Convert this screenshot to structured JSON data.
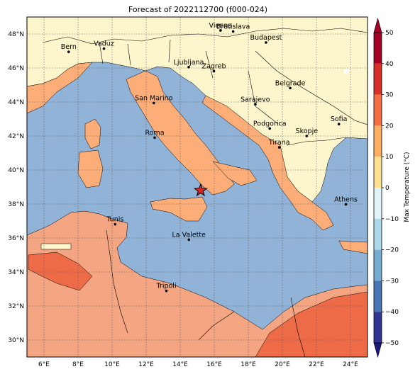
{
  "title": "Forecast of 2022112700 (f000-024)",
  "map": {
    "lon_range": [
      5,
      25
    ],
    "lat_range": [
      29,
      49
    ],
    "x_ticks": [
      {
        "lon": 6,
        "label": "6°E"
      },
      {
        "lon": 8,
        "label": "8°E"
      },
      {
        "lon": 10,
        "label": "10°E"
      },
      {
        "lon": 12,
        "label": "12°E"
      },
      {
        "lon": 14,
        "label": "14°E"
      },
      {
        "lon": 16,
        "label": "16°E"
      },
      {
        "lon": 18,
        "label": "18°E"
      },
      {
        "lon": 20,
        "label": "20°E"
      },
      {
        "lon": 22,
        "label": "22°E"
      },
      {
        "lon": 24,
        "label": "24°E"
      }
    ],
    "y_ticks": [
      {
        "lat": 48,
        "label": "48°N"
      },
      {
        "lat": 46,
        "label": "46°N"
      },
      {
        "lat": 44,
        "label": "44°N"
      },
      {
        "lat": 42,
        "label": "42°N"
      },
      {
        "lat": 40,
        "label": "40°N"
      },
      {
        "lat": 38,
        "label": "38°N"
      },
      {
        "lat": 36,
        "label": "36°N"
      },
      {
        "lat": 34,
        "label": "34°N"
      },
      {
        "lat": 32,
        "label": "32°N"
      },
      {
        "lat": 30,
        "label": "30°N"
      }
    ],
    "gridlines": true,
    "cities": [
      {
        "name": "Bern",
        "lon": 7.45,
        "lat": 46.95
      },
      {
        "name": "Vaduz",
        "lon": 9.52,
        "lat": 47.14
      },
      {
        "name": "Vienna",
        "lon": 16.37,
        "lat": 48.21
      },
      {
        "name": "Bratislava",
        "lon": 17.11,
        "lat": 48.15
      },
      {
        "name": "Budapest",
        "lon": 19.04,
        "lat": 47.5
      },
      {
        "name": "Ljubljana",
        "lon": 14.5,
        "lat": 46.05
      },
      {
        "name": "Zagreb",
        "lon": 15.98,
        "lat": 45.81
      },
      {
        "name": "Belgrade",
        "lon": 20.46,
        "lat": 44.82
      },
      {
        "name": "San Marino",
        "lon": 12.45,
        "lat": 43.94
      },
      {
        "name": "Sarajevo",
        "lon": 18.41,
        "lat": 43.86
      },
      {
        "name": "Sofia",
        "lon": 23.32,
        "lat": 42.7
      },
      {
        "name": "Podgorica",
        "lon": 19.26,
        "lat": 42.44
      },
      {
        "name": "Skopje",
        "lon": 21.43,
        "lat": 42.0
      },
      {
        "name": "Roma",
        "lon": 12.5,
        "lat": 41.9
      },
      {
        "name": "Tirana",
        "lon": 19.82,
        "lat": 41.33
      },
      {
        "name": "Athens",
        "lon": 23.73,
        "lat": 37.98
      },
      {
        "name": "Tunis",
        "lon": 10.18,
        "lat": 36.81
      },
      {
        "name": "La Valette",
        "lon": 14.51,
        "lat": 35.9
      },
      {
        "name": "Tripoli",
        "lon": 13.19,
        "lat": 32.89
      }
    ],
    "marker": {
      "symbol": "star",
      "lon": 15.2,
      "lat": 38.8,
      "color": "#d62728"
    }
  },
  "colorbar": {
    "label": "Max Temperature (°C)",
    "ticks": [
      "50",
      "40",
      "30",
      "20",
      "10",
      "0",
      "−10",
      "−20",
      "−30",
      "−40",
      "−50"
    ],
    "colors": [
      "#a50026",
      "#d73027",
      "#f46d43",
      "#fdae61",
      "#fee090",
      "#ffffbf",
      "#e0f3f8",
      "#abd9e9",
      "#74add1",
      "#4575b4",
      "#313695"
    ]
  },
  "fill_colors": {
    "sea": "#91b3d7",
    "cold_land": "#fdf5cc",
    "mid_land": "#fdae78",
    "warm_land": "#f4a582",
    "hot_land": "#ee6b48",
    "snow": "#ffffff"
  }
}
